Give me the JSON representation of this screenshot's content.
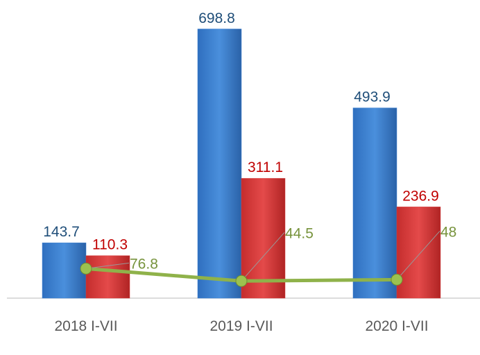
{
  "chart_data": {
    "type": "bar",
    "categories": [
      "2018 I-VII",
      "2019 I-VII",
      "2020 I-VII"
    ],
    "series": [
      {
        "type": "bar",
        "color": "#3a7fd0",
        "label_color": "#1f4e79",
        "values": [
          143.7,
          698.8,
          493.9
        ]
      },
      {
        "type": "bar",
        "color": "#d83b3b",
        "label_color": "#c00000",
        "values": [
          110.3,
          311.1,
          236.9
        ]
      },
      {
        "type": "line",
        "color": "#8fb24a",
        "label_color": "#77933c",
        "values": [
          76.8,
          44.5,
          48
        ]
      }
    ],
    "ylim": [
      0,
      720
    ]
  }
}
